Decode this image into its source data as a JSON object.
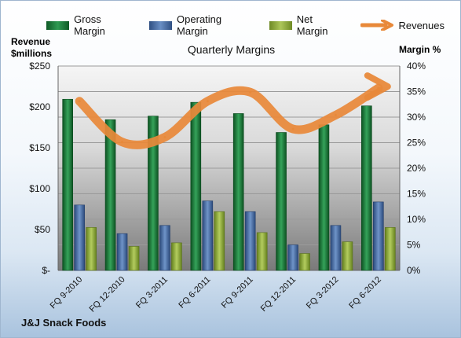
{
  "legend": {
    "gross": "Gross Margin",
    "operating": "Operating Margin",
    "net": "Net Margin",
    "revenues": "Revenues"
  },
  "left_axis_title_line1": "Revenue",
  "left_axis_title_line2": "$millions",
  "right_axis_title": "Margin %",
  "footer": "J&J Snack Foods",
  "colors": {
    "gross": "#1e7a3c",
    "operating": "#4a6fa5",
    "net": "#8faa3c",
    "revenues": "#e8893a"
  },
  "chart_data": {
    "type": "bar",
    "title": "Quarterly Margins",
    "categories": [
      "FQ 9-2010",
      "FQ 12-2010",
      "FQ 3-2011",
      "FQ 6-2011",
      "FQ 9-2011",
      "FQ 12-2011",
      "FQ 3-2012",
      "FQ 6-2012"
    ],
    "series": [
      {
        "name": "Gross Margin",
        "axis": "right",
        "values": [
          33.5,
          29.5,
          30.2,
          32.9,
          30.7,
          27.0,
          28.5,
          32.2
        ]
      },
      {
        "name": "Operating Margin",
        "axis": "right",
        "values": [
          12.8,
          7.2,
          8.8,
          13.6,
          11.5,
          5.0,
          8.8,
          13.4
        ]
      },
      {
        "name": "Net Margin",
        "axis": "right",
        "values": [
          8.4,
          4.7,
          5.4,
          11.5,
          7.4,
          3.3,
          5.6,
          8.4
        ]
      },
      {
        "name": "Revenues",
        "type": "line",
        "axis": "left",
        "values": [
          207,
          157,
          163,
          207,
          218,
          173,
          190,
          223
        ]
      }
    ],
    "ylabel_left": "Revenue $millions",
    "ylabel_right": "Margin %",
    "ylim_left": [
      0,
      250
    ],
    "ylim_right": [
      0,
      40
    ],
    "yticks_left": [
      "$-",
      "$50",
      "$100",
      "$150",
      "$200",
      "$250"
    ],
    "yticks_right": [
      "0%",
      "5%",
      "10%",
      "15%",
      "20%",
      "25%",
      "30%",
      "35%",
      "40%"
    ],
    "grid": true,
    "legend_position": "top"
  }
}
